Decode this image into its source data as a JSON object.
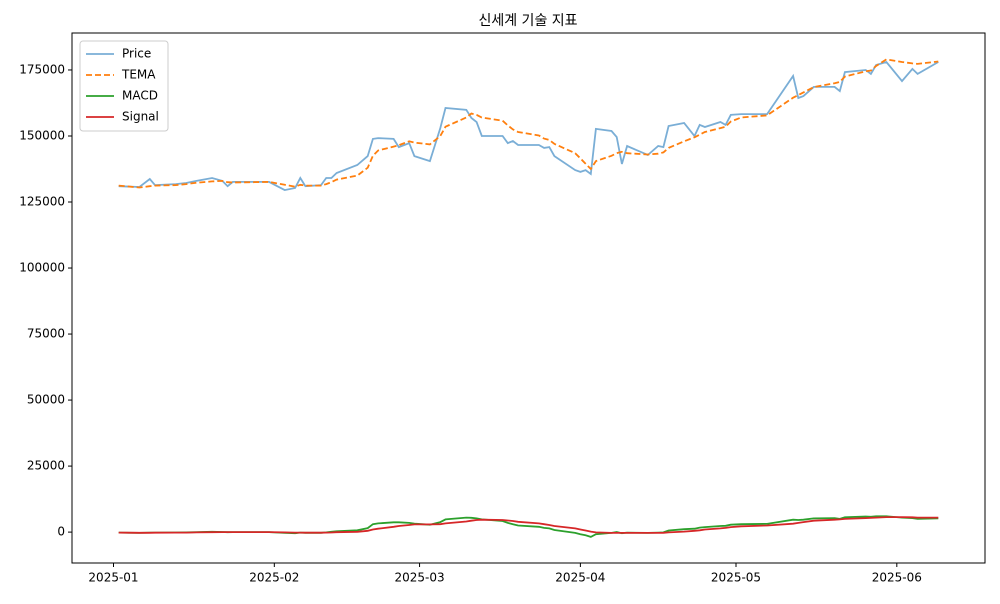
{
  "chart_data": {
    "type": "line",
    "title": "신세계 기술 지표",
    "x": [
      "2025-01-02",
      "2025-01-06",
      "2025-01-08",
      "2025-01-09",
      "2025-01-13",
      "2025-01-15",
      "2025-01-17",
      "2025-01-20",
      "2025-01-22",
      "2025-01-23",
      "2025-01-24",
      "2025-01-31",
      "2025-02-03",
      "2025-02-05",
      "2025-02-06",
      "2025-02-07",
      "2025-02-10",
      "2025-02-11",
      "2025-02-12",
      "2025-02-13",
      "2025-02-17",
      "2025-02-19",
      "2025-02-20",
      "2025-02-21",
      "2025-02-24",
      "2025-02-25",
      "2025-02-27",
      "2025-02-28",
      "2025-03-03",
      "2025-03-05",
      "2025-03-06",
      "2025-03-10",
      "2025-03-11",
      "2025-03-12",
      "2025-03-13",
      "2025-03-17",
      "2025-03-18",
      "2025-03-19",
      "2025-03-20",
      "2025-03-24",
      "2025-03-25",
      "2025-03-26",
      "2025-03-27",
      "2025-03-31",
      "2025-04-01",
      "2025-04-02",
      "2025-04-03",
      "2025-04-04",
      "2025-04-07",
      "2025-04-08",
      "2025-04-09",
      "2025-04-10",
      "2025-04-14",
      "2025-04-16",
      "2025-04-17",
      "2025-04-18",
      "2025-04-21",
      "2025-04-23",
      "2025-04-24",
      "2025-04-25",
      "2025-04-28",
      "2025-04-29",
      "2025-04-30",
      "2025-05-02",
      "2025-05-07",
      "2025-05-12",
      "2025-05-13",
      "2025-05-14",
      "2025-05-16",
      "2025-05-20",
      "2025-05-21",
      "2025-05-22",
      "2025-05-26",
      "2025-05-27",
      "2025-05-28",
      "2025-05-30",
      "2025-06-02",
      "2025-06-04",
      "2025-06-05",
      "2025-06-09"
    ],
    "series": [
      {
        "name": "Price",
        "color": "#7aaed6",
        "style": "solid",
        "values": [
          131000,
          130700,
          133700,
          131400,
          131800,
          132200,
          133000,
          134100,
          133000,
          131000,
          132600,
          132600,
          129500,
          130300,
          134100,
          131000,
          131400,
          134100,
          134100,
          136000,
          139000,
          142400,
          148900,
          149200,
          148900,
          145800,
          147300,
          142400,
          140500,
          153000,
          160600,
          159900,
          156800,
          155300,
          150000,
          150000,
          147300,
          148100,
          146600,
          146600,
          145500,
          145800,
          142400,
          137100,
          136400,
          137100,
          135600,
          152700,
          151900,
          149600,
          139400,
          146200,
          142800,
          146200,
          145800,
          153800,
          154900,
          150000,
          154200,
          153400,
          155300,
          154200,
          158000,
          158300,
          158300,
          172700,
          164400,
          165100,
          168600,
          168600,
          167000,
          174200,
          175000,
          173500,
          176900,
          178000,
          170800,
          175400,
          173500,
          178000
        ]
      },
      {
        "name": "TEMA",
        "color": "#ff7f0e",
        "style": "dashed",
        "values": [
          131200,
          130500,
          131000,
          131200,
          131400,
          131800,
          132300,
          132800,
          133000,
          132500,
          132400,
          132600,
          131500,
          130800,
          131500,
          131200,
          131200,
          131800,
          132500,
          133500,
          135000,
          138000,
          142500,
          144500,
          146000,
          146500,
          148000,
          147500,
          146800,
          150000,
          153500,
          157000,
          158500,
          158000,
          157000,
          155800,
          154000,
          152500,
          151500,
          150200,
          149000,
          148500,
          147000,
          143500,
          141500,
          139500,
          137500,
          140500,
          142500,
          143500,
          144000,
          143500,
          143000,
          143300,
          143800,
          145500,
          148000,
          149500,
          150500,
          151500,
          153000,
          153500,
          155500,
          157000,
          157800,
          164500,
          165500,
          166500,
          168500,
          170000,
          170500,
          172500,
          174500,
          174800,
          176500,
          179000,
          178000,
          177500,
          177300,
          178200
        ]
      },
      {
        "name": "MACD",
        "color": "#2ca02c",
        "style": "solid",
        "values": [
          -200,
          -300,
          -200,
          -200,
          -150,
          -100,
          0,
          100,
          50,
          -50,
          0,
          0,
          -300,
          -400,
          -200,
          -250,
          -250,
          -100,
          100,
          300,
          700,
          1500,
          3000,
          3300,
          3700,
          3700,
          3500,
          3200,
          2800,
          3800,
          4800,
          5500,
          5400,
          5200,
          4800,
          4200,
          3500,
          3000,
          2500,
          2000,
          1600,
          1400,
          800,
          -300,
          -800,
          -1200,
          -1800,
          -800,
          -300,
          0,
          -400,
          -200,
          -300,
          -200,
          -100,
          600,
          1100,
          1300,
          1700,
          1900,
          2300,
          2400,
          2800,
          3000,
          3100,
          4700,
          4600,
          4700,
          5200,
          5300,
          5000,
          5600,
          5900,
          5800,
          6000,
          6000,
          5500,
          5300,
          5000,
          5200
        ]
      },
      {
        "name": "Signal",
        "color": "#d62728",
        "style": "solid",
        "values": [
          -200,
          -250,
          -250,
          -230,
          -200,
          -180,
          -120,
          -50,
          0,
          0,
          0,
          0,
          -100,
          -200,
          -200,
          -220,
          -230,
          -200,
          -150,
          -50,
          100,
          500,
          1000,
          1300,
          2000,
          2300,
          2700,
          2900,
          2900,
          3000,
          3300,
          4000,
          4300,
          4600,
          4700,
          4600,
          4400,
          4200,
          3900,
          3300,
          3000,
          2700,
          2300,
          1400,
          1000,
          600,
          200,
          -100,
          -300,
          -300,
          -300,
          -300,
          -300,
          -300,
          -250,
          -100,
          200,
          500,
          700,
          1000,
          1400,
          1600,
          1900,
          2200,
          2500,
          3200,
          3500,
          3800,
          4300,
          4700,
          4800,
          5000,
          5300,
          5400,
          5500,
          5700,
          5700,
          5600,
          5500,
          5500
        ]
      }
    ],
    "xlim": [
      "2024-12-24",
      "2025-06-18"
    ],
    "xticks": [
      "2025-01",
      "2025-02",
      "2025-03",
      "2025-04",
      "2025-05",
      "2025-06"
    ],
    "ylim": [
      -11700,
      189000
    ],
    "yticks": [
      0,
      25000,
      50000,
      75000,
      100000,
      125000,
      150000,
      175000
    ],
    "grid": false,
    "legend": "upper left"
  }
}
